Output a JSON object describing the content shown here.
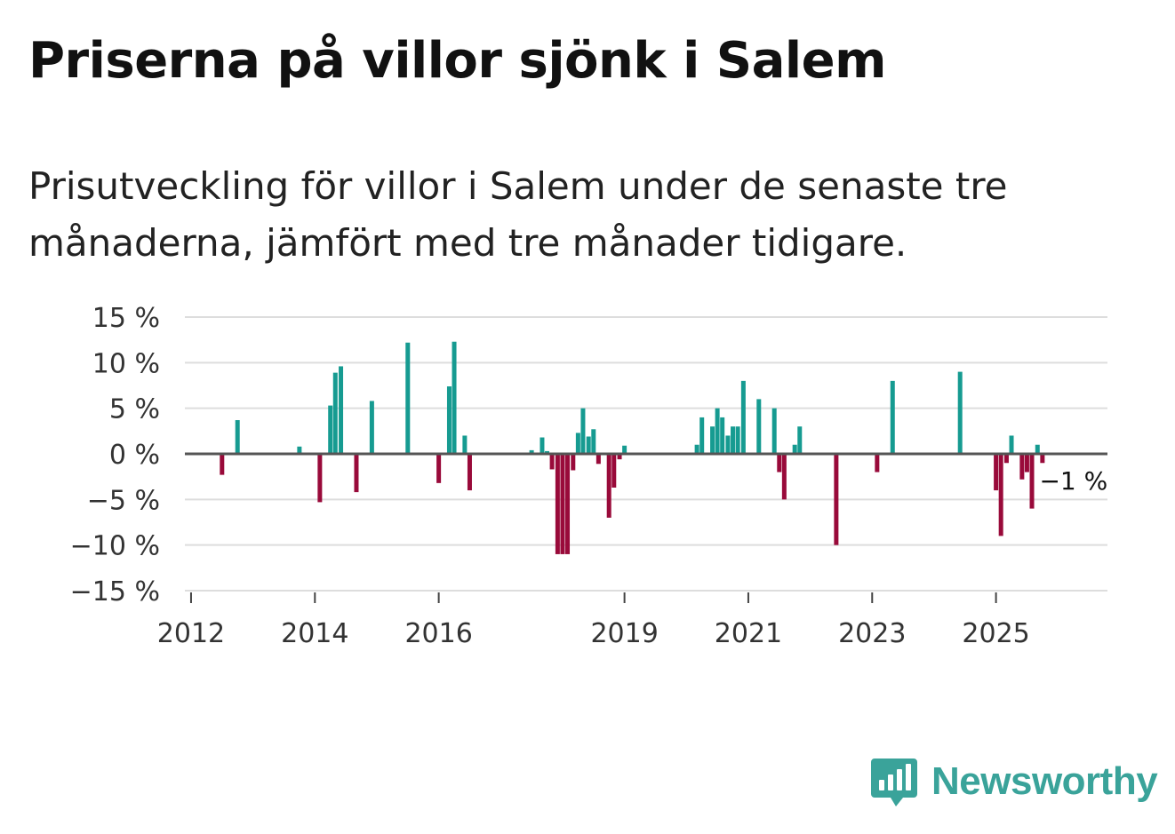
{
  "title": "Priserna på villor sjönk i Salem",
  "subtitle": "Prisutveckling för villor i Salem under de senaste tre månaderna, jämfört med tre månader tidigare.",
  "brand": {
    "name": "Newsworthy",
    "color": "#3aa39a"
  },
  "colors": {
    "positive": "#169b91",
    "negative": "#990a3a",
    "grid": "#dddddd",
    "zero_line": "#555555"
  },
  "chart_data": {
    "type": "bar",
    "title": "Priserna på villor sjönk i Salem",
    "xlabel": "",
    "ylabel": "",
    "ylim": [
      -15,
      15
    ],
    "xlim": [
      2011.9,
      2026.8
    ],
    "y_ticks": [
      {
        "value": 15,
        "label": "15 %"
      },
      {
        "value": 10,
        "label": "10 %"
      },
      {
        "value": 5,
        "label": "5 %"
      },
      {
        "value": 0,
        "label": "0 %"
      },
      {
        "value": -5,
        "label": "−5 %"
      },
      {
        "value": -10,
        "label": "−10 %"
      },
      {
        "value": -15,
        "label": "−15 %"
      }
    ],
    "x_ticks": [
      {
        "value": 2012.0,
        "label": "2012"
      },
      {
        "value": 2014.0,
        "label": "2014"
      },
      {
        "value": 2016.0,
        "label": "2016"
      },
      {
        "value": 2019.0,
        "label": "2019"
      },
      {
        "value": 2021.0,
        "label": "2021"
      },
      {
        "value": 2023.0,
        "label": "2023"
      },
      {
        "value": 2025.0,
        "label": "2025"
      }
    ],
    "end_label": "−1 %",
    "series": [
      {
        "name": "Prisutveckling",
        "points": [
          {
            "x": 2012.5,
            "y": -2.3
          },
          {
            "x": 2012.75,
            "y": 3.7
          },
          {
            "x": 2013.75,
            "y": 0.8
          },
          {
            "x": 2014.08,
            "y": -5.3
          },
          {
            "x": 2014.25,
            "y": 5.3
          },
          {
            "x": 2014.33,
            "y": 8.9
          },
          {
            "x": 2014.42,
            "y": 9.6
          },
          {
            "x": 2014.67,
            "y": -4.2
          },
          {
            "x": 2014.92,
            "y": 5.8
          },
          {
            "x": 2015.5,
            "y": 12.2
          },
          {
            "x": 2016.0,
            "y": -3.2
          },
          {
            "x": 2016.17,
            "y": 7.4
          },
          {
            "x": 2016.25,
            "y": 12.3
          },
          {
            "x": 2016.42,
            "y": 2.0
          },
          {
            "x": 2016.5,
            "y": -4.0
          },
          {
            "x": 2017.5,
            "y": 0.4
          },
          {
            "x": 2017.67,
            "y": 1.8
          },
          {
            "x": 2017.75,
            "y": 0.3
          },
          {
            "x": 2017.83,
            "y": -1.7
          },
          {
            "x": 2017.92,
            "y": -11.0
          },
          {
            "x": 2018.0,
            "y": -11.0
          },
          {
            "x": 2018.08,
            "y": -11.0
          },
          {
            "x": 2018.17,
            "y": -1.8
          },
          {
            "x": 2018.25,
            "y": 2.3
          },
          {
            "x": 2018.33,
            "y": 5.0
          },
          {
            "x": 2018.42,
            "y": 1.9
          },
          {
            "x": 2018.5,
            "y": 2.7
          },
          {
            "x": 2018.58,
            "y": -1.1
          },
          {
            "x": 2018.75,
            "y": -7.0
          },
          {
            "x": 2018.83,
            "y": -3.7
          },
          {
            "x": 2018.92,
            "y": -0.6
          },
          {
            "x": 2019.0,
            "y": 0.9
          },
          {
            "x": 2020.17,
            "y": 1.0
          },
          {
            "x": 2020.25,
            "y": 4.0
          },
          {
            "x": 2020.42,
            "y": 3.0
          },
          {
            "x": 2020.5,
            "y": 5.0
          },
          {
            "x": 2020.58,
            "y": 4.0
          },
          {
            "x": 2020.67,
            "y": 2.0
          },
          {
            "x": 2020.75,
            "y": 3.0
          },
          {
            "x": 2020.83,
            "y": 3.0
          },
          {
            "x": 2020.92,
            "y": 8.0
          },
          {
            "x": 2021.17,
            "y": 6.0
          },
          {
            "x": 2021.42,
            "y": 5.0
          },
          {
            "x": 2021.5,
            "y": -2.0
          },
          {
            "x": 2021.58,
            "y": -5.0
          },
          {
            "x": 2021.75,
            "y": 1.0
          },
          {
            "x": 2021.83,
            "y": 3.0
          },
          {
            "x": 2022.42,
            "y": -10.0
          },
          {
            "x": 2023.08,
            "y": -2.0
          },
          {
            "x": 2023.33,
            "y": 8.0
          },
          {
            "x": 2024.42,
            "y": 9.0
          },
          {
            "x": 2025.0,
            "y": -4.0
          },
          {
            "x": 2025.08,
            "y": -9.0
          },
          {
            "x": 2025.17,
            "y": -1.0
          },
          {
            "x": 2025.25,
            "y": 2.0
          },
          {
            "x": 2025.42,
            "y": -2.8
          },
          {
            "x": 2025.5,
            "y": -2.0
          },
          {
            "x": 2025.58,
            "y": -6.0
          },
          {
            "x": 2025.67,
            "y": 1.0
          },
          {
            "x": 2025.75,
            "y": -1.0
          }
        ]
      }
    ]
  }
}
